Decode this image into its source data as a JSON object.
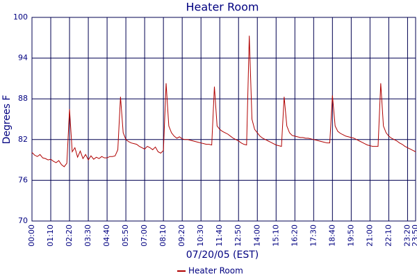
{
  "chart_data": {
    "type": "line",
    "title": "Heater Room",
    "xlabel": "07/20/05 (EST)",
    "ylabel": "Degrees F",
    "x": [
      "00:00",
      "00:10",
      "00:20",
      "00:30",
      "00:40",
      "00:50",
      "01:00",
      "01:10",
      "01:20",
      "01:30",
      "01:40",
      "01:50",
      "02:00",
      "02:10",
      "02:20",
      "02:30",
      "02:40",
      "02:50",
      "03:00",
      "03:10",
      "03:20",
      "03:30",
      "03:40",
      "03:50",
      "04:00",
      "04:10",
      "04:20",
      "04:30",
      "04:40",
      "04:50",
      "05:00",
      "05:10",
      "05:20",
      "05:30",
      "05:40",
      "05:50",
      "06:00",
      "06:10",
      "06:20",
      "06:30",
      "06:40",
      "06:50",
      "07:00",
      "07:10",
      "07:20",
      "07:30",
      "07:40",
      "07:50",
      "08:00",
      "08:10",
      "08:20",
      "08:30",
      "08:40",
      "08:50",
      "09:00",
      "09:10",
      "09:20",
      "09:30",
      "09:40",
      "09:50",
      "10:00",
      "10:10",
      "10:20",
      "10:30",
      "10:40",
      "10:50",
      "11:00",
      "11:10",
      "11:20",
      "11:30",
      "11:40",
      "11:50",
      "12:00",
      "12:10",
      "12:20",
      "12:30",
      "12:40",
      "12:50",
      "13:00",
      "13:10",
      "13:20",
      "13:30",
      "13:40",
      "13:50",
      "14:00",
      "14:10",
      "14:20",
      "14:30",
      "14:40",
      "14:50",
      "15:00",
      "15:10",
      "15:20",
      "15:30",
      "15:40",
      "15:50",
      "16:00",
      "16:10",
      "16:20",
      "16:30",
      "16:40",
      "16:50",
      "17:00",
      "17:10",
      "17:20",
      "17:30",
      "17:40",
      "17:50",
      "18:00",
      "18:10",
      "18:20",
      "18:30",
      "18:40",
      "18:50",
      "19:00",
      "19:10",
      "19:20",
      "19:30",
      "19:40",
      "19:50",
      "20:00",
      "20:10",
      "20:20",
      "20:30",
      "20:40",
      "20:50",
      "21:00",
      "21:10",
      "21:20",
      "21:30",
      "21:40",
      "21:50",
      "22:00",
      "22:10",
      "22:20",
      "22:30",
      "22:40",
      "22:50",
      "23:00",
      "23:10",
      "23:20",
      "23:30",
      "23:40",
      "23:50"
    ],
    "series": [
      {
        "name": "Heater Room",
        "color": "#b00000",
        "values": [
          80.1,
          79.7,
          79.5,
          79.8,
          79.3,
          79.2,
          79.0,
          79.1,
          78.8,
          78.6,
          78.9,
          78.3,
          78.0,
          78.5,
          86.5,
          80.2,
          80.8,
          79.4,
          80.3,
          79.2,
          79.8,
          79.0,
          79.6,
          79.1,
          79.4,
          79.2,
          79.5,
          79.3,
          79.3,
          79.5,
          79.5,
          79.6,
          80.5,
          88.3,
          83.0,
          82.0,
          81.7,
          81.5,
          81.4,
          81.3,
          81.0,
          80.8,
          80.6,
          81.0,
          80.8,
          80.5,
          80.9,
          80.2,
          80.0,
          80.4,
          90.3,
          84.0,
          83.0,
          82.5,
          82.2,
          82.4,
          82.1,
          82.0,
          82.0,
          81.9,
          81.8,
          81.7,
          81.6,
          81.5,
          81.4,
          81.3,
          81.3,
          81.2,
          89.8,
          84.0,
          83.5,
          83.2,
          83.0,
          82.8,
          82.5,
          82.2,
          82.0,
          81.8,
          81.5,
          81.3,
          81.2,
          97.3,
          85.0,
          83.5,
          83.0,
          82.5,
          82.2,
          82.0,
          81.8,
          81.6,
          81.4,
          81.2,
          81.1,
          81.0,
          88.3,
          84.0,
          83.0,
          82.6,
          82.5,
          82.4,
          82.3,
          82.3,
          82.2,
          82.2,
          82.1,
          82.0,
          81.9,
          81.8,
          81.7,
          81.6,
          81.5,
          81.5,
          88.5,
          84.0,
          83.2,
          82.9,
          82.7,
          82.5,
          82.4,
          82.3,
          82.2,
          82.0,
          81.8,
          81.6,
          81.4,
          81.2,
          81.1,
          81.0,
          81.0,
          81.0,
          90.3,
          84.0,
          83.0,
          82.5,
          82.2,
          82.0,
          81.8,
          81.5,
          81.3,
          81.0,
          80.8,
          80.6,
          80.4,
          80.2
        ]
      }
    ],
    "xlim": [
      "00:00",
      "23:50"
    ],
    "xticks": [
      "00:00",
      "01:10",
      "02:20",
      "03:30",
      "04:40",
      "05:50",
      "07:00",
      "08:10",
      "09:20",
      "10:30",
      "11:40",
      "12:50",
      "14:00",
      "15:10",
      "16:20",
      "17:30",
      "18:40",
      "19:50",
      "21:00",
      "22:10",
      "23:20",
      "23:50"
    ],
    "ylim": [
      70,
      100
    ],
    "yticks": [
      70,
      76,
      82,
      88,
      94,
      100
    ],
    "grid": true
  }
}
